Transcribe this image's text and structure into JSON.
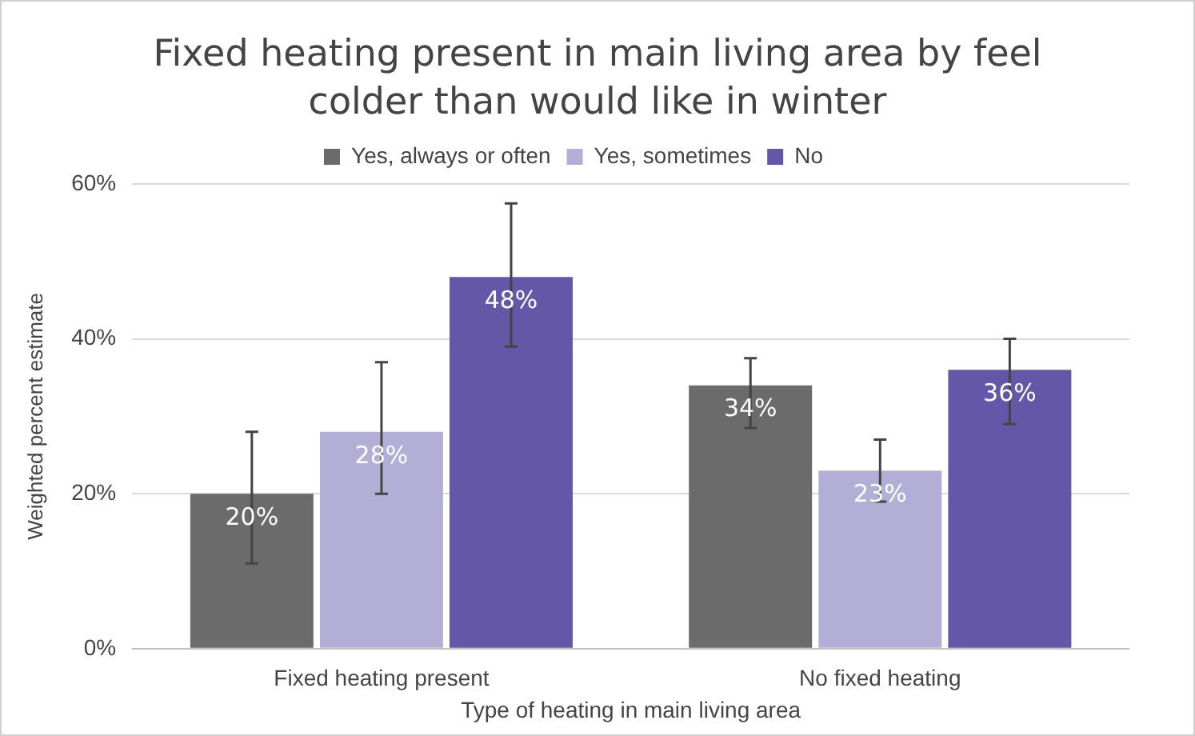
{
  "chart_data": {
    "type": "bar",
    "title": "Fixed heating present in main living area by feel colder than would like in winter",
    "xlabel": "Type of heating in main living area",
    "ylabel": "Weighted percent estimate",
    "categories": [
      "Fixed heating present",
      "No fixed heating"
    ],
    "series": [
      {
        "name": "Yes, always or often",
        "color": "#6b6b6b",
        "values": [
          20,
          34
        ],
        "errors": [
          [
            11,
            28
          ],
          [
            28.5,
            37.5
          ]
        ],
        "value_labels": [
          "20%",
          "34%"
        ]
      },
      {
        "name": "Yes, sometimes",
        "color": "#b3aed6",
        "values": [
          28,
          23
        ],
        "errors": [
          [
            20,
            37
          ],
          [
            19,
            27
          ]
        ],
        "value_labels": [
          "28%",
          "23%"
        ]
      },
      {
        "name": "No",
        "color": "#6557a8",
        "values": [
          48,
          36
        ],
        "errors": [
          [
            39,
            57.5
          ],
          [
            29,
            40
          ]
        ],
        "value_labels": [
          "48%",
          "36%"
        ]
      }
    ],
    "ylim": [
      0,
      60
    ],
    "yticks": [
      {
        "value": 0,
        "label": "0%"
      },
      {
        "value": 20,
        "label": "20%"
      },
      {
        "value": 40,
        "label": "40%"
      },
      {
        "value": 60,
        "label": "60%"
      }
    ],
    "grid": "y",
    "legend": "top"
  }
}
